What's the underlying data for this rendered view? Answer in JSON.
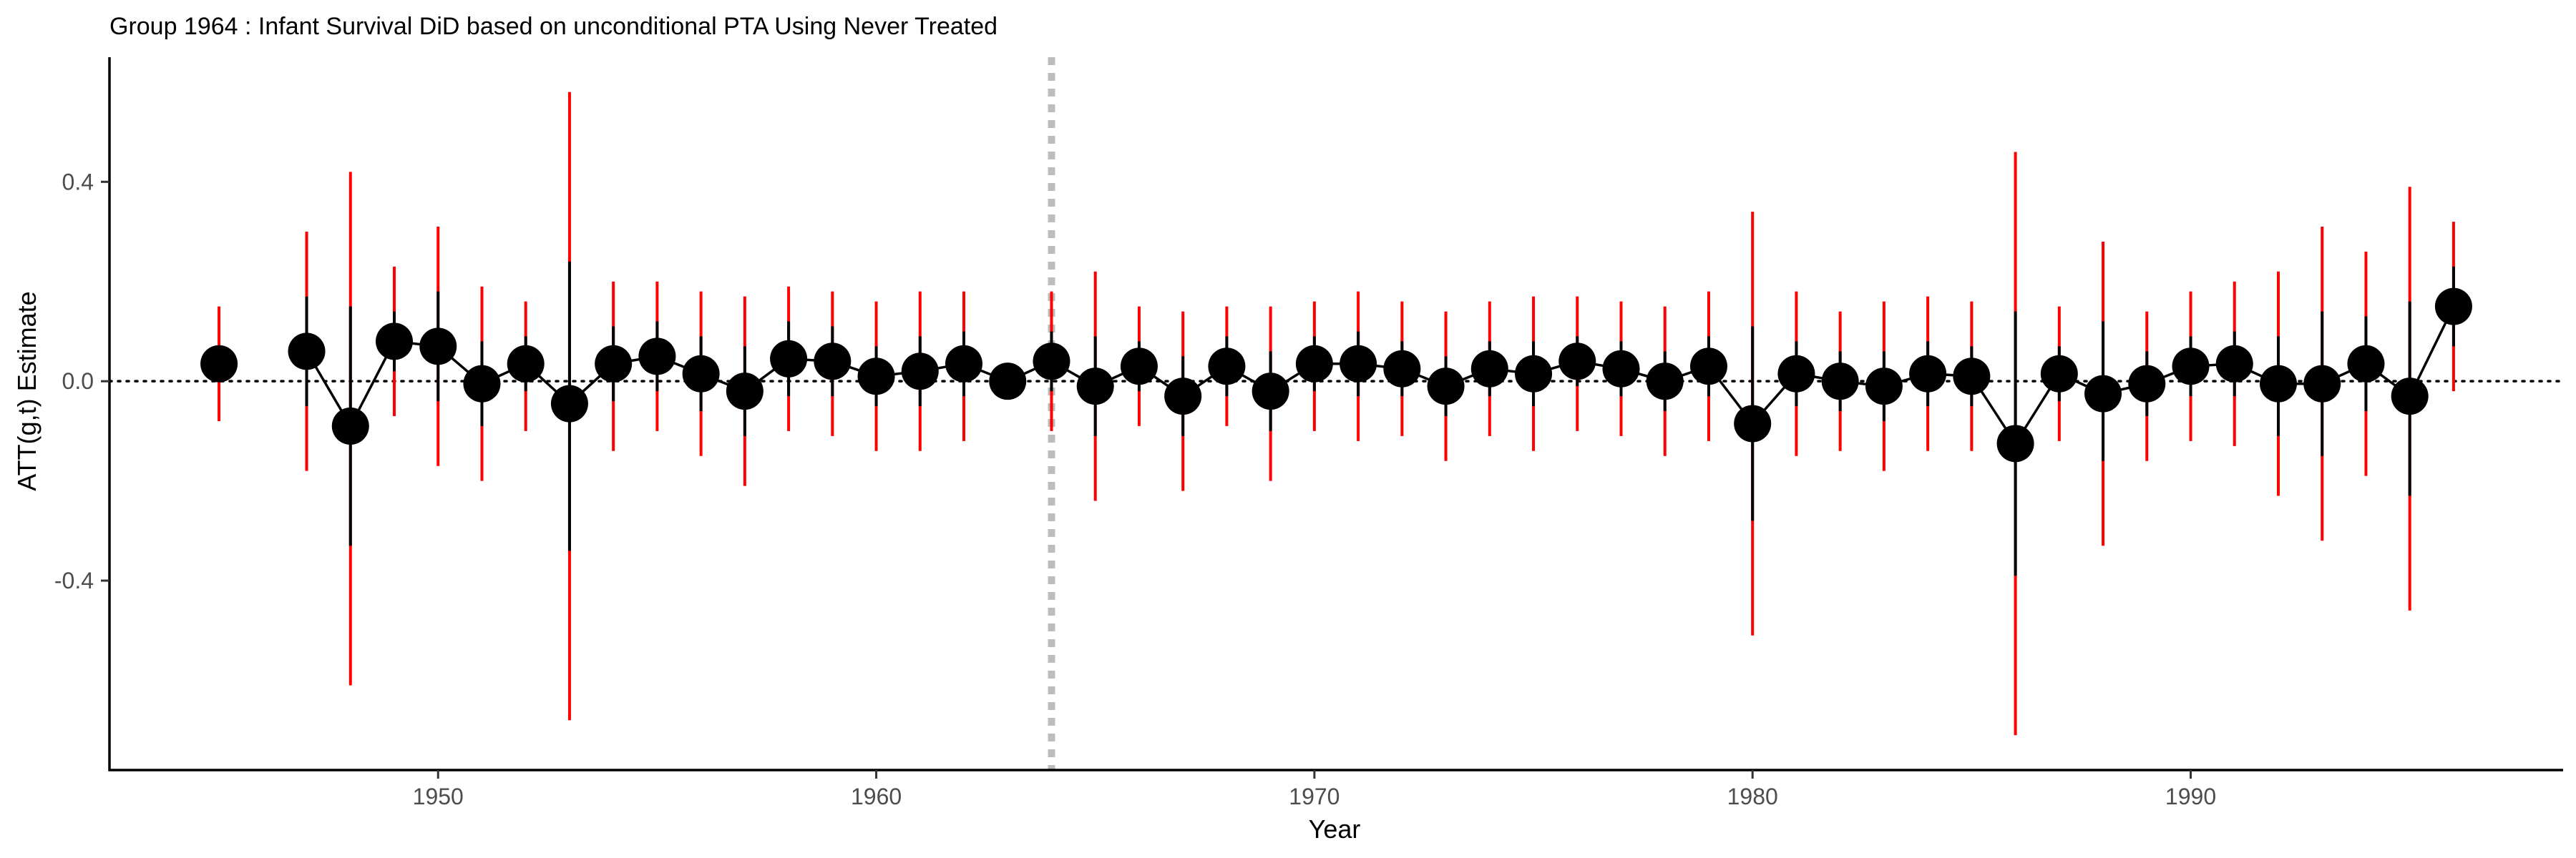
{
  "chart_data": {
    "type": "scatter",
    "title": "Group 1964 : Infant Survival DiD based on unconditional PTA Using Never Treated",
    "xlabel": "Year",
    "ylabel": "ATT(g,t) Estimate",
    "xlim": [
      1942.5,
      1998.5
    ],
    "ylim": [
      -0.78,
      0.65
    ],
    "xticks": [
      1950,
      1960,
      1970,
      1980,
      1990
    ],
    "yticks": [
      -0.4,
      0.0,
      0.4
    ],
    "ytick_labels": [
      "-0.4",
      "0.0",
      "0.4"
    ],
    "treatment_year": 1964,
    "reference_line_y": 0,
    "grid": false,
    "colors": {
      "point": "#000000",
      "line": "#000000",
      "ci_inner": "#000000",
      "ci_outer": "#ff0000",
      "treatment_line": "#bdbdbd"
    },
    "series": [
      {
        "name": "",
        "segment": "pre",
        "x": [
          1945
        ],
        "y": [
          0.035
        ],
        "ci_inner": [
          [
            0.0,
            0.07
          ]
        ],
        "ci_outer": [
          [
            -0.08,
            0.15
          ]
        ]
      },
      {
        "name": "",
        "segment": "pre",
        "x": [
          1947,
          1948,
          1949,
          1950,
          1951,
          1952,
          1953,
          1954,
          1955,
          1956,
          1957,
          1958,
          1959,
          1960,
          1961,
          1962,
          1963,
          1964,
          1965,
          1966,
          1967,
          1968,
          1969,
          1970,
          1971,
          1972,
          1973,
          1974,
          1975,
          1976,
          1977,
          1978,
          1979,
          1980,
          1981,
          1982,
          1983,
          1984,
          1985,
          1986,
          1987,
          1988,
          1989,
          1990,
          1991,
          1992,
          1993,
          1994,
          1995,
          1996
        ],
        "y": [
          0.06,
          -0.09,
          0.08,
          0.07,
          -0.005,
          0.035,
          -0.045,
          0.035,
          0.05,
          0.015,
          -0.02,
          0.045,
          0.04,
          0.01,
          0.02,
          0.035,
          0.0,
          0.04,
          -0.01,
          0.03,
          -0.03,
          0.03,
          -0.02,
          0.035,
          0.035,
          0.025,
          -0.01,
          0.025,
          0.015,
          0.04,
          0.025,
          0.0,
          0.03,
          -0.085,
          0.015,
          0.0,
          -0.01,
          0.015,
          0.01,
          -0.125,
          0.015,
          -0.025,
          -0.005,
          0.03,
          0.035,
          -0.005,
          -0.005,
          0.035,
          -0.03,
          0.15
        ],
        "ci_inner": [
          [
            -0.05,
            0.17
          ],
          [
            -0.33,
            0.15
          ],
          [
            0.02,
            0.14
          ],
          [
            -0.04,
            0.18
          ],
          [
            -0.09,
            0.08
          ],
          [
            -0.02,
            0.09
          ],
          [
            -0.34,
            0.24
          ],
          [
            -0.04,
            0.11
          ],
          [
            -0.02,
            0.12
          ],
          [
            -0.06,
            0.09
          ],
          [
            -0.11,
            0.07
          ],
          [
            -0.03,
            0.12
          ],
          [
            -0.03,
            0.11
          ],
          [
            -0.05,
            0.07
          ],
          [
            -0.05,
            0.09
          ],
          [
            -0.03,
            0.1
          ],
          [
            -0.03,
            0.03
          ],
          [
            -0.02,
            0.1
          ],
          [
            -0.11,
            0.09
          ],
          [
            -0.02,
            0.08
          ],
          [
            -0.11,
            0.05
          ],
          [
            -0.03,
            0.09
          ],
          [
            -0.1,
            0.06
          ],
          [
            -0.02,
            0.09
          ],
          [
            -0.03,
            0.1
          ],
          [
            -0.03,
            0.08
          ],
          [
            -0.07,
            0.05
          ],
          [
            -0.03,
            0.08
          ],
          [
            -0.05,
            0.08
          ],
          [
            -0.01,
            0.09
          ],
          [
            -0.03,
            0.08
          ],
          [
            -0.06,
            0.06
          ],
          [
            -0.03,
            0.09
          ],
          [
            -0.28,
            0.11
          ],
          [
            -0.05,
            0.08
          ],
          [
            -0.06,
            0.06
          ],
          [
            -0.08,
            0.06
          ],
          [
            -0.05,
            0.08
          ],
          [
            -0.05,
            0.07
          ],
          [
            -0.39,
            0.14
          ],
          [
            -0.04,
            0.07
          ],
          [
            -0.16,
            0.12
          ],
          [
            -0.07,
            0.06
          ],
          [
            -0.03,
            0.09
          ],
          [
            -0.03,
            0.1
          ],
          [
            -0.11,
            0.09
          ],
          [
            -0.15,
            0.14
          ],
          [
            -0.06,
            0.13
          ],
          [
            -0.23,
            0.16
          ],
          [
            0.07,
            0.23
          ]
        ],
        "ci_outer": [
          [
            -0.18,
            0.3
          ],
          [
            -0.61,
            0.42
          ],
          [
            -0.07,
            0.23
          ],
          [
            -0.17,
            0.31
          ],
          [
            -0.2,
            0.19
          ],
          [
            -0.1,
            0.16
          ],
          [
            -0.68,
            0.58
          ],
          [
            -0.14,
            0.2
          ],
          [
            -0.1,
            0.2
          ],
          [
            -0.15,
            0.18
          ],
          [
            -0.21,
            0.17
          ],
          [
            -0.1,
            0.19
          ],
          [
            -0.11,
            0.18
          ],
          [
            -0.14,
            0.16
          ],
          [
            -0.14,
            0.18
          ],
          [
            -0.12,
            0.18
          ],
          [
            -0.03,
            0.03
          ],
          [
            -0.1,
            0.18
          ],
          [
            -0.24,
            0.22
          ],
          [
            -0.09,
            0.15
          ],
          [
            -0.22,
            0.14
          ],
          [
            -0.09,
            0.15
          ],
          [
            -0.2,
            0.15
          ],
          [
            -0.1,
            0.16
          ],
          [
            -0.12,
            0.18
          ],
          [
            -0.11,
            0.16
          ],
          [
            -0.16,
            0.14
          ],
          [
            -0.11,
            0.16
          ],
          [
            -0.14,
            0.17
          ],
          [
            -0.1,
            0.17
          ],
          [
            -0.11,
            0.16
          ],
          [
            -0.15,
            0.15
          ],
          [
            -0.12,
            0.18
          ],
          [
            -0.51,
            0.34
          ],
          [
            -0.15,
            0.18
          ],
          [
            -0.14,
            0.14
          ],
          [
            -0.18,
            0.16
          ],
          [
            -0.14,
            0.17
          ],
          [
            -0.14,
            0.16
          ],
          [
            -0.71,
            0.46
          ],
          [
            -0.12,
            0.15
          ],
          [
            -0.33,
            0.28
          ],
          [
            -0.16,
            0.14
          ],
          [
            -0.12,
            0.18
          ],
          [
            -0.13,
            0.2
          ],
          [
            -0.23,
            0.22
          ],
          [
            -0.32,
            0.31
          ],
          [
            -0.19,
            0.26
          ],
          [
            -0.46,
            0.39
          ],
          [
            -0.02,
            0.32
          ]
        ]
      }
    ]
  }
}
